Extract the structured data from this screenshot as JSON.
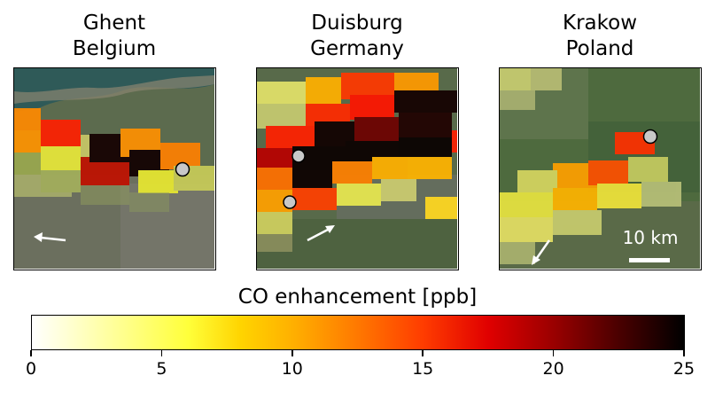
{
  "panels": [
    {
      "city": "Ghent",
      "country": "Belgium"
    },
    {
      "city": "Duisburg",
      "country": "Germany"
    },
    {
      "city": "Krakow",
      "country": "Poland"
    }
  ],
  "scale_bar": {
    "label": "10 km"
  },
  "colorbar": {
    "label": "CO enhancement [ppb]",
    "range": [
      0,
      25
    ],
    "ticks": [
      "0",
      "5",
      "10",
      "15",
      "20",
      "25"
    ],
    "colormap": "hot_r"
  }
}
